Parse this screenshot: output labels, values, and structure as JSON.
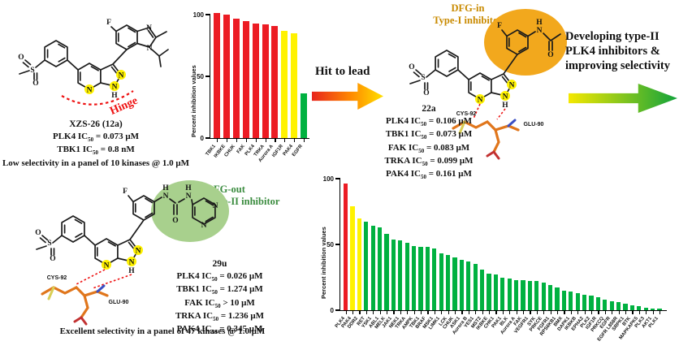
{
  "colors": {
    "bar_red": "#EC1C24",
    "bar_yellow": "#FFF200",
    "bar_green": "#00B140",
    "dfgin_text": "#C98A00",
    "dfgin_fill": "#F2A81D",
    "dfgout_text": "#3B8C3F",
    "dfgout_fill": "#A8D08D",
    "hinge_red": "#EE1111",
    "arrow1_from": "#E8241C",
    "arrow1_to": "#FFE000",
    "arrow2_from": "#F5E800",
    "arrow2_to": "#12A33B"
  },
  "stage1": {
    "compound": "XZS-26 (12a)",
    "ic50_lines": [
      {
        "kinase": "PLK4",
        "rel": "=",
        "value": "0.073 μM"
      },
      {
        "kinase": "TBK1",
        "rel": "=",
        "value": "0.8 nM"
      }
    ],
    "note": "Low selectivity in a panel of 10 kinases @ 1.0 μM",
    "hinge_label": "Hinge"
  },
  "arrow1": {
    "label": "Hit to lead"
  },
  "stage2": {
    "badge_line1": "DFG-in",
    "badge_line2": "Type-I inhibitor",
    "compound": "22a",
    "ic50_lines": [
      {
        "kinase": "PLK4",
        "rel": "=",
        "value": "0.106 μM"
      },
      {
        "kinase": "TBK1",
        "rel": "=",
        "value": "0.073 μM"
      },
      {
        "kinase": "FAK",
        "rel": "=",
        "value": "0.083 μM"
      },
      {
        "kinase": "TRKA",
        "rel": "=",
        "value": "0.099 μM"
      },
      {
        "kinase": "PAK4",
        "rel": "=",
        "value": "0.161 μM"
      }
    ],
    "cys_label": "CYS-92",
    "glu_label": "GLU-90"
  },
  "arrow2": {
    "label_line1": "Developing type-II",
    "label_line2": "PLK4 inhibitors &",
    "label_line3": "improving selectivity"
  },
  "stage3": {
    "badge_line1": "DFG-out",
    "badge_line2": "Type-II inhibitor",
    "compound": "29u",
    "ic50_lines": [
      {
        "kinase": "PLK4",
        "rel": "=",
        "value": "0.026 μM"
      },
      {
        "kinase": "TBK1",
        "rel": "=",
        "value": "1.274 μM"
      },
      {
        "kinase": "FAK",
        "rel": ">",
        "value": "10 μM"
      },
      {
        "kinase": "TRKA",
        "rel": "=",
        "value": "1.236 μM"
      },
      {
        "kinase": "PAK4",
        "rel": "=",
        "value": "0.345 μM"
      }
    ],
    "note": "Excellent selectivity in a panel of 47 kinases @ 1.0 μM",
    "cys_label": "CYS-92",
    "glu_label": "GLU-90"
  },
  "chart_data": [
    {
      "type": "bar",
      "ylabel": "Percent inhibition values",
      "ylim": [
        0,
        100
      ],
      "yticks": [
        0,
        50,
        100
      ],
      "grid": false,
      "legend": false,
      "categories": [
        "TBK1",
        "IKBKE",
        "CHUK",
        "FAK",
        "PLK4",
        "TRKA",
        "Aurora A",
        "IGF1R",
        "PAK4",
        "EGFR"
      ],
      "values": [
        101,
        100,
        97,
        95,
        93,
        92,
        91,
        87,
        85,
        36
      ],
      "bar_color_names": [
        "bar_red",
        "bar_red",
        "bar_red",
        "bar_red",
        "bar_red",
        "bar_red",
        "bar_red",
        "bar_yellow",
        "bar_yellow",
        "bar_green"
      ]
    },
    {
      "type": "bar",
      "ylabel": "Percent inhibition values",
      "ylim": [
        0,
        100
      ],
      "yticks": [
        0,
        50,
        100
      ],
      "grid": false,
      "legend": false,
      "categories": [
        "PLK4",
        "PAK4",
        "DDR2",
        "RET",
        "YSK1",
        "ABL1",
        "MELK",
        "JAK1",
        "NEK1",
        "TRKA",
        "AMPK",
        "TBK1",
        "BRAF",
        "MSK1",
        "LIMK1",
        "LCK",
        "CHUK",
        "ASK1",
        "Aurora B",
        "YES1",
        "MST2",
        "IKBKE",
        "CHK1",
        "PAK1",
        "BLK",
        "Aurora A",
        "FAK",
        "VEGFR1",
        "SYK",
        "PRKCE",
        "FGFR1",
        "RPS6KB1",
        "BMX",
        "DAPK1",
        "IKBKB",
        "EPHA2",
        "PLK2",
        "IGF1R",
        "PRKCQ",
        "EGFR",
        "EGFR L858R",
        "SRPK1",
        "BTK",
        "MAPKAPK5",
        "PLK3",
        "AKT1",
        "PLK1"
      ],
      "values": [
        96,
        79,
        70,
        67,
        64,
        63,
        58,
        54,
        53,
        51,
        49,
        48,
        48,
        47,
        43,
        42,
        40,
        38,
        37,
        35,
        31,
        28,
        27,
        25,
        24,
        23,
        23,
        22,
        22,
        21,
        19,
        17,
        15,
        14,
        13,
        12,
        11,
        10,
        8,
        7,
        6,
        5,
        4,
        3,
        2,
        1,
        1
      ],
      "bar_color_names": [
        "bar_red",
        "bar_yellow",
        "bar_yellow",
        "bar_green",
        "bar_green",
        "bar_green",
        "bar_green",
        "bar_green",
        "bar_green",
        "bar_green",
        "bar_green",
        "bar_green",
        "bar_green",
        "bar_green",
        "bar_green",
        "bar_green",
        "bar_green",
        "bar_green",
        "bar_green",
        "bar_green",
        "bar_green",
        "bar_green",
        "bar_green",
        "bar_green",
        "bar_green",
        "bar_green",
        "bar_green",
        "bar_green",
        "bar_green",
        "bar_green",
        "bar_green",
        "bar_green",
        "bar_green",
        "bar_green",
        "bar_green",
        "bar_green",
        "bar_green",
        "bar_green",
        "bar_green",
        "bar_green",
        "bar_green",
        "bar_green",
        "bar_green",
        "bar_green",
        "bar_green",
        "bar_green",
        "bar_green"
      ]
    }
  ]
}
